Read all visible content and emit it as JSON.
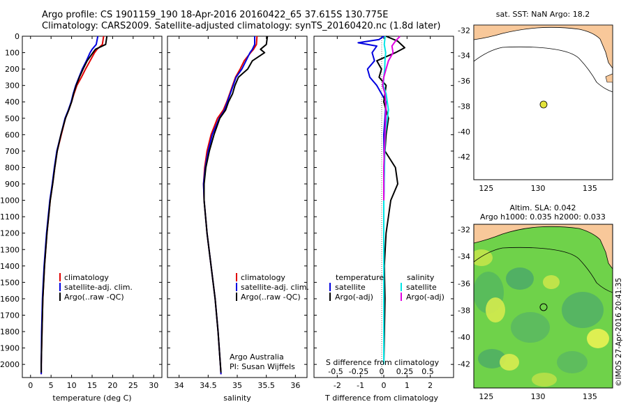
{
  "header": {
    "line1": "Argo profile: CS 1901159_190 18-Apr-2016 20160422_65 37.615S 130.775E",
    "line2": "Climatology: CARS2009. Satellite-adjusted climatology: synTS_20160420.nc (1.8d later)"
  },
  "credits": {
    "vertical_label": "©IMOS 27-Apr-2016 20:41:35"
  },
  "colors": {
    "climatology": "#e00000",
    "satellite": "#0000e0",
    "argo": "#000000",
    "sat_salinity": "#00e5e5",
    "argo_salinity": "#e000e0",
    "land": "#f8c89a",
    "float_marker": "#e3e33a"
  },
  "depth_ticks": [
    "0",
    "100",
    "200",
    "300",
    "400",
    "500",
    "600",
    "700",
    "800",
    "900",
    "1000",
    "1100",
    "1200",
    "1300",
    "1400",
    "1500",
    "1600",
    "1700",
    "1800",
    "1900",
    "2000"
  ],
  "chart_data": [
    {
      "type": "line",
      "name": "temperature_profile",
      "xlabel": "temperature (deg C)",
      "xticks": [
        "0",
        "5",
        "10",
        "15",
        "20",
        "25",
        "30"
      ],
      "xlim": [
        -2,
        32
      ],
      "ylim": [
        2080,
        0
      ],
      "legend": [
        "climatology",
        "satellite-adj. clim.",
        "Argo(..raw -QC)"
      ],
      "series": [
        {
          "name": "climatology",
          "color": "#e00000",
          "x": [
            17.8,
            17.5,
            16.2,
            15.6,
            14.5,
            13.4,
            12.4,
            11.3,
            10.6,
            10.0,
            9.3,
            8.5,
            7.5,
            6.5,
            5.9,
            5.4,
            4.8,
            4.0,
            3.4,
            3.0,
            2.8,
            2.6,
            2.6
          ],
          "y": [
            0,
            50,
            80,
            100,
            150,
            200,
            250,
            300,
            350,
            400,
            450,
            500,
            600,
            700,
            800,
            900,
            1000,
            1200,
            1400,
            1600,
            1800,
            2000,
            2060
          ]
        },
        {
          "name": "satellite-adj. clim.",
          "color": "#0000e0",
          "x": [
            16.4,
            16.0,
            15.0,
            14.5,
            13.6,
            12.6,
            11.8,
            11.0,
            10.4,
            9.9,
            9.2,
            8.4,
            7.4,
            6.4,
            5.8,
            5.3,
            4.7,
            3.9,
            3.3,
            2.9,
            2.7,
            2.6,
            2.6
          ],
          "y": [
            0,
            50,
            80,
            100,
            150,
            200,
            250,
            300,
            350,
            400,
            450,
            500,
            600,
            700,
            800,
            900,
            1000,
            1200,
            1400,
            1600,
            1800,
            2000,
            2060
          ]
        },
        {
          "name": "Argo(..raw -QC)",
          "color": "#000000",
          "x": [
            18.6,
            18.3,
            15.8,
            15.2,
            13.8,
            12.8,
            11.9,
            11.1,
            10.5,
            10.0,
            9.3,
            8.5,
            7.4,
            6.5,
            5.9,
            5.4,
            4.8,
            4.0,
            3.4,
            3.0,
            2.8,
            2.6,
            2.6
          ],
          "y": [
            0,
            50,
            80,
            100,
            150,
            200,
            250,
            300,
            350,
            400,
            450,
            500,
            600,
            700,
            800,
            900,
            1000,
            1200,
            1400,
            1600,
            1800,
            2000,
            2050
          ]
        }
      ]
    },
    {
      "type": "line",
      "name": "salinity_profile",
      "xlabel": "salinity",
      "xticks": [
        "34",
        "34.5",
        "35",
        "35.5",
        "36"
      ],
      "xlim": [
        33.8,
        36.2
      ],
      "ylim": [
        2080,
        0
      ],
      "legend": [
        "climatology",
        "satellite-adj. clim.",
        "Argo(..raw -QC)"
      ],
      "annotation": [
        "Argo Australia",
        "PI: Susan Wijffels"
      ],
      "series": [
        {
          "name": "climatology",
          "color": "#e00000",
          "x": [
            35.34,
            35.33,
            35.28,
            35.23,
            35.12,
            35.05,
            34.97,
            34.92,
            34.87,
            34.82,
            34.76,
            34.66,
            34.55,
            34.48,
            34.44,
            34.42,
            34.43,
            34.48,
            34.55,
            34.62,
            34.67,
            34.71,
            34.72
          ],
          "y": [
            0,
            50,
            80,
            100,
            150,
            200,
            250,
            300,
            350,
            400,
            450,
            500,
            600,
            700,
            800,
            900,
            1000,
            1200,
            1400,
            1600,
            1800,
            2000,
            2060
          ]
        },
        {
          "name": "satellite-adj. clim.",
          "color": "#0000e0",
          "x": [
            35.3,
            35.3,
            35.26,
            35.22,
            35.15,
            35.08,
            34.98,
            34.93,
            34.88,
            34.83,
            34.78,
            34.69,
            34.57,
            34.5,
            34.45,
            34.42,
            34.43,
            34.48,
            34.55,
            34.62,
            34.67,
            34.71,
            34.72
          ],
          "y": [
            0,
            50,
            80,
            100,
            150,
            200,
            250,
            300,
            350,
            400,
            450,
            500,
            600,
            700,
            800,
            900,
            1000,
            1200,
            1400,
            1600,
            1800,
            2000,
            2060
          ]
        },
        {
          "name": "Argo(..raw -QC)",
          "color": "#000000",
          "x": [
            35.52,
            35.5,
            35.4,
            35.47,
            35.26,
            35.18,
            35.02,
            34.96,
            34.92,
            34.85,
            34.8,
            34.7,
            34.6,
            34.52,
            34.46,
            34.43,
            34.43,
            34.48,
            34.55,
            34.62,
            34.67,
            34.71,
            34.72
          ],
          "y": [
            0,
            50,
            80,
            100,
            150,
            200,
            250,
            300,
            350,
            400,
            450,
            500,
            600,
            700,
            800,
            900,
            1000,
            1200,
            1400,
            1600,
            1800,
            2000,
            2050
          ]
        }
      ]
    },
    {
      "type": "line",
      "name": "difference_profile",
      "xlabel": "T difference from climatology",
      "top_label": "S difference from climatology",
      "xticks": [
        "-2",
        "-1",
        "0",
        "1",
        "2"
      ],
      "xlim": [
        -3,
        3
      ],
      "ylim": [
        2080,
        0
      ],
      "sticks": [
        "-0.5",
        "-0.25",
        "0",
        "0.25",
        "0.5"
      ],
      "legend_headers": [
        "temperature",
        "salinity"
      ],
      "legend": [
        "satellite",
        "Argo(-adj)",
        "satellite",
        "Argo(-adj)"
      ],
      "series": [
        {
          "name": "satellite",
          "quantity": "temperature",
          "color": "#0000e0",
          "x": [
            0,
            -0.2,
            -1.1,
            -0.3,
            -0.5,
            -0.4,
            -0.7,
            -0.6,
            -0.3,
            0.1,
            0.05,
            0,
            0.02,
            0,
            0,
            0,
            0,
            0,
            0
          ],
          "y": [
            0,
            20,
            40,
            60,
            100,
            150,
            200,
            250,
            300,
            400,
            500,
            600,
            800,
            1000,
            1200,
            1400,
            1600,
            1800,
            2000
          ]
        },
        {
          "name": "Argo(-adj)",
          "quantity": "temperature",
          "color": "#000000",
          "x": [
            0.1,
            0.6,
            0.9,
            0.5,
            -0.3,
            -0.1,
            -0.2,
            0.1,
            0,
            0.2,
            0.1,
            0.05,
            0.5,
            0.6,
            0.3,
            0.1,
            0.02,
            0.05,
            0
          ],
          "y": [
            0,
            30,
            70,
            100,
            150,
            200,
            250,
            300,
            400,
            500,
            600,
            700,
            800,
            900,
            1000,
            1200,
            1400,
            1600,
            2000
          ]
        },
        {
          "name": "satellite",
          "quantity": "salinity",
          "color": "#00e5e5",
          "x": [
            0.06,
            0.02,
            0.08,
            0.05,
            0.04,
            0,
            -0.02,
            0.1,
            0.2,
            0.06,
            0.03,
            0,
            0,
            0
          ],
          "y": [
            0,
            50,
            100,
            150,
            200,
            250,
            300,
            350,
            450,
            600,
            800,
            1000,
            1500,
            2000
          ]
        },
        {
          "name": "Argo(-adj)",
          "quantity": "salinity",
          "color": "#e000e0",
          "x": [
            0.7,
            0.5,
            0.35,
            0.4,
            0.2,
            0.1,
            0,
            -0.05,
            0.05,
            0.1,
            0.05,
            0,
            0
          ],
          "y": [
            0,
            30,
            60,
            100,
            150,
            200,
            250,
            300,
            350,
            450,
            600,
            800,
            1000
          ]
        }
      ]
    },
    {
      "type": "map",
      "name": "sst_map",
      "title": "sat. SST: NaN Argo: 18.2",
      "xticks": [
        "125",
        "130",
        "135"
      ],
      "yticks": [
        "-32",
        "-34",
        "-36",
        "-38",
        "-40",
        "-42"
      ],
      "xlim": [
        123.8,
        137.2
      ],
      "ylim": [
        -43.8,
        -31.6
      ],
      "float": {
        "lon": 130.775,
        "lat": -37.615
      }
    },
    {
      "type": "heatmap",
      "name": "sla_map",
      "title_lines": [
        "Altim. SLA: 0.042",
        "Argo h1000: 0.035 h2000: 0.033"
      ],
      "xticks": [
        "125",
        "130",
        "135"
      ],
      "yticks": [
        "-32",
        "-34",
        "-36",
        "-38",
        "-40",
        "-42"
      ],
      "xlim": [
        123.8,
        137.2
      ],
      "ylim": [
        -43.8,
        -31.6
      ],
      "float": {
        "lon": 130.775,
        "lat": -37.615
      }
    }
  ]
}
